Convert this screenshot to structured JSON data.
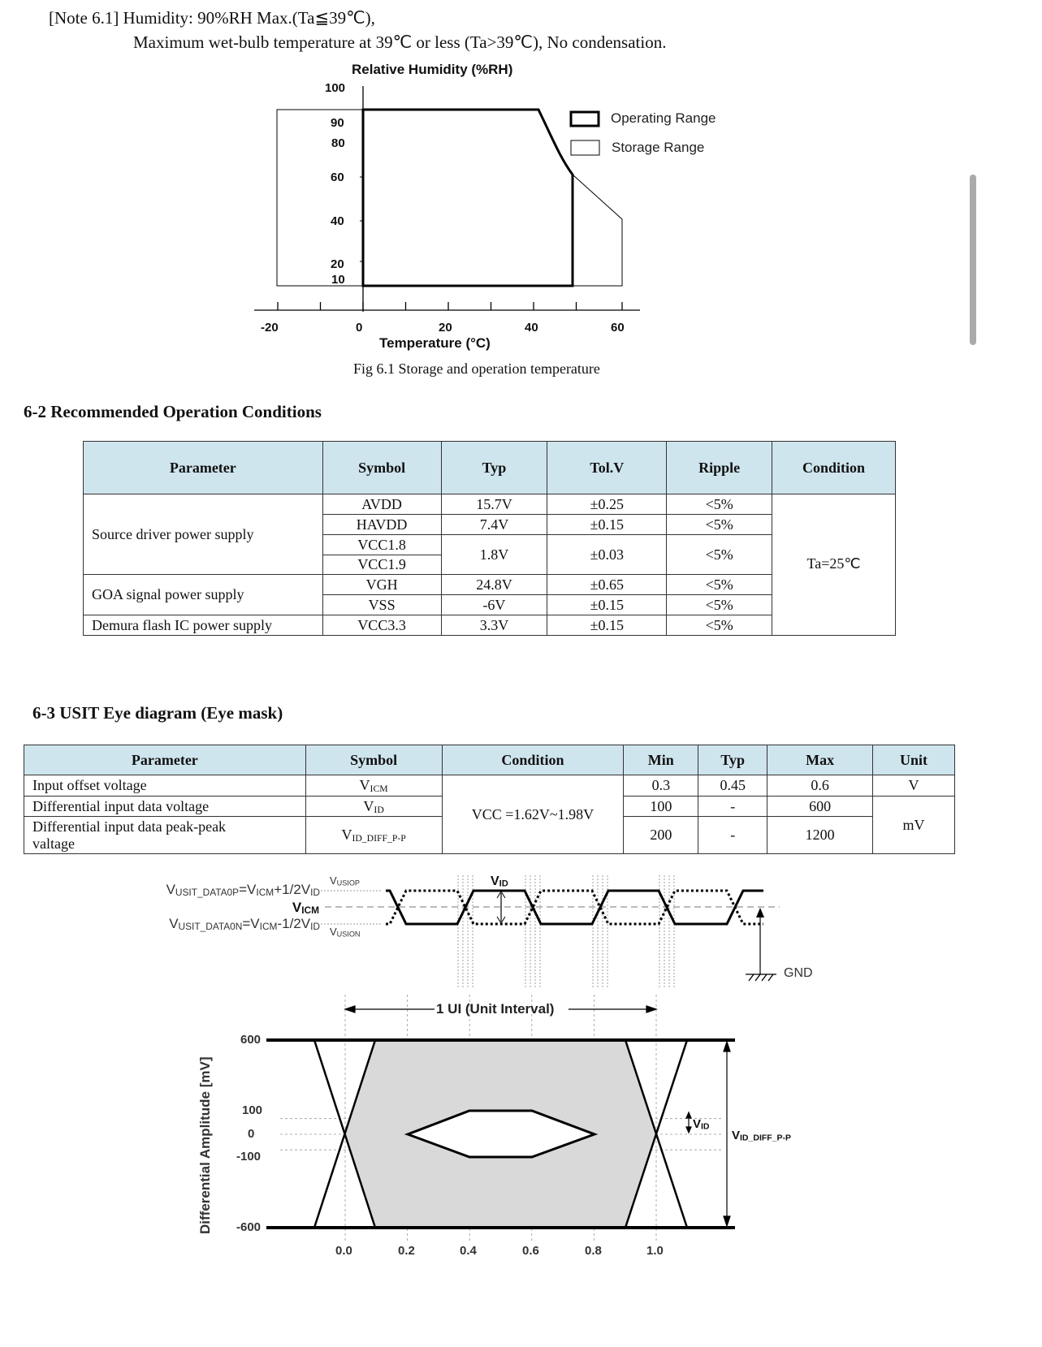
{
  "note": {
    "line1": "[Note 6.1] Humidity: 90%RH Max.(Ta≦39℃),",
    "line2": "Maximum wet-bulb temperature at 39℃  or less (Ta>39℃), No condensation."
  },
  "fig61": {
    "y_title": "Relative Humidity (%RH)",
    "x_title": "Temperature (°C)",
    "y_ticks": [
      "100",
      "90",
      "80",
      "60",
      "40",
      "20",
      "10"
    ],
    "x_ticks": [
      "-20",
      "0",
      "20",
      "40",
      "60"
    ],
    "legend": [
      "Operating Range",
      "Storage Range"
    ],
    "caption": "Fig 6.1 Storage and operation temperature",
    "chart_data": {
      "type": "area",
      "series": [
        {
          "name": "Operating Range",
          "points": [
            [
              0,
              10
            ],
            [
              0,
              90
            ],
            [
              41,
              90
            ],
            [
              50,
              60
            ],
            [
              50,
              10
            ]
          ]
        },
        {
          "name": "Storage Range",
          "points": [
            [
              -20,
              10
            ],
            [
              -20,
              90
            ],
            [
              41,
              90
            ],
            [
              50,
              60
            ],
            [
              60,
              40
            ],
            [
              60,
              10
            ]
          ]
        }
      ],
      "xlim": [
        -20,
        60
      ],
      "ylim": [
        10,
        100
      ]
    }
  },
  "section62": {
    "title": "6-2 Recommended Operation Conditions",
    "headers": [
      "Parameter",
      "Symbol",
      "Typ",
      "Tol.V",
      "Ripple",
      "Condition"
    ],
    "groups": [
      "Source driver power supply",
      "GOA signal power supply",
      "Demura flash IC power supply"
    ],
    "rows": [
      {
        "symbol": "AVDD",
        "typ": "15.7V",
        "tol": "±0.25",
        "ripple": "<5%"
      },
      {
        "symbol": "HAVDD",
        "typ": "7.4V",
        "tol": "±0.15",
        "ripple": "<5%"
      },
      {
        "symbol": "VCC1.8",
        "typ": "1.8V",
        "tol": "±0.03",
        "ripple": "<5%"
      },
      {
        "symbol": "VCC1.9"
      },
      {
        "symbol": "VGH",
        "typ": "24.8V",
        "tol": "±0.65",
        "ripple": "<5%"
      },
      {
        "symbol": "VSS",
        "typ": "-6V",
        "tol": "±0.15",
        "ripple": "<5%"
      },
      {
        "symbol": "VCC3.3",
        "typ": "3.3V",
        "tol": "±0.15",
        "ripple": "<5%"
      }
    ],
    "condition": "Ta=25℃"
  },
  "section63": {
    "title": "6-3 USIT Eye diagram (Eye mask)",
    "headers": [
      "Parameter",
      "Symbol",
      "Condition",
      "Min",
      "Typ",
      "Max",
      "Unit"
    ],
    "rows": [
      {
        "param": "Input offset voltage",
        "sym_main": "V",
        "sym_sub": "ICM",
        "min": "0.3",
        "typ": "0.45",
        "max": "0.6",
        "unit": "V"
      },
      {
        "param": "Differential input data voltage",
        "sym_main": "V",
        "sym_sub": "ID",
        "min": "100",
        "typ": "-",
        "max": "600"
      },
      {
        "param": "Differential input data peak-peak valtage",
        "sym_main": "V",
        "sym_sub": "ID_DIFF_P-P",
        "min": "200",
        "typ": "-",
        "max": "1200"
      }
    ],
    "condition": "VCC =1.62V~1.98V",
    "unit_mv": "mV"
  },
  "waveform": {
    "label_p": [
      [
        "V",
        ""
      ],
      [
        "USIT_DATA0P",
        "s"
      ],
      [
        "=V",
        ""
      ],
      [
        "ICM",
        "s"
      ],
      [
        "+1/2V",
        ""
      ],
      [
        "ID",
        "s"
      ]
    ],
    "label_icm": [
      [
        "V",
        ""
      ],
      [
        "ICM",
        "s"
      ]
    ],
    "label_n": [
      [
        "V",
        ""
      ],
      [
        "USIT_DATA0N",
        "s"
      ],
      [
        "=V",
        ""
      ],
      [
        "ICM",
        "s"
      ],
      [
        "-1/2V",
        ""
      ],
      [
        "ID",
        "s"
      ]
    ],
    "vusiop": [
      [
        "V",
        ""
      ],
      [
        "USIOP",
        "s"
      ]
    ],
    "vusion": [
      [
        "V",
        ""
      ],
      [
        "USION",
        "s"
      ]
    ],
    "vid": [
      [
        "V",
        ""
      ],
      [
        "ID",
        "s"
      ]
    ],
    "gnd": "GND"
  },
  "eye": {
    "ui_label": "1 UI (Unit Interval)",
    "y_label": "Differential Amplitude [mV]",
    "y_ticks": [
      "600",
      "100",
      "0",
      "-100",
      "-600"
    ],
    "x_ticks": [
      "0.0",
      "0.2",
      "0.4",
      "0.6",
      "0.8",
      "1.0"
    ],
    "vid": [
      [
        "V",
        ""
      ],
      [
        "ID",
        "s"
      ]
    ],
    "vid_pp": [
      [
        "V",
        ""
      ],
      [
        "ID_DIFF_P-P",
        "s"
      ]
    ],
    "chart_data": {
      "type": "line",
      "title": "",
      "xlabel": "UI",
      "ylabel": "Differential Amplitude [mV]",
      "xlim": [
        0,
        1
      ],
      "ylim": [
        -600,
        600
      ],
      "series": [
        {
          "name": "inner eye mask",
          "points": [
            [
              0.2,
              0
            ],
            [
              0.4,
              100
            ],
            [
              0.6,
              100
            ],
            [
              0.8,
              0
            ],
            [
              0.6,
              -100
            ],
            [
              0.4,
              -100
            ],
            [
              0.2,
              0
            ]
          ]
        },
        {
          "name": "outer limits",
          "points": [
            [
              0,
              600
            ],
            [
              1,
              600
            ],
            [
              1,
              -600
            ],
            [
              0,
              -600
            ]
          ]
        }
      ]
    }
  }
}
